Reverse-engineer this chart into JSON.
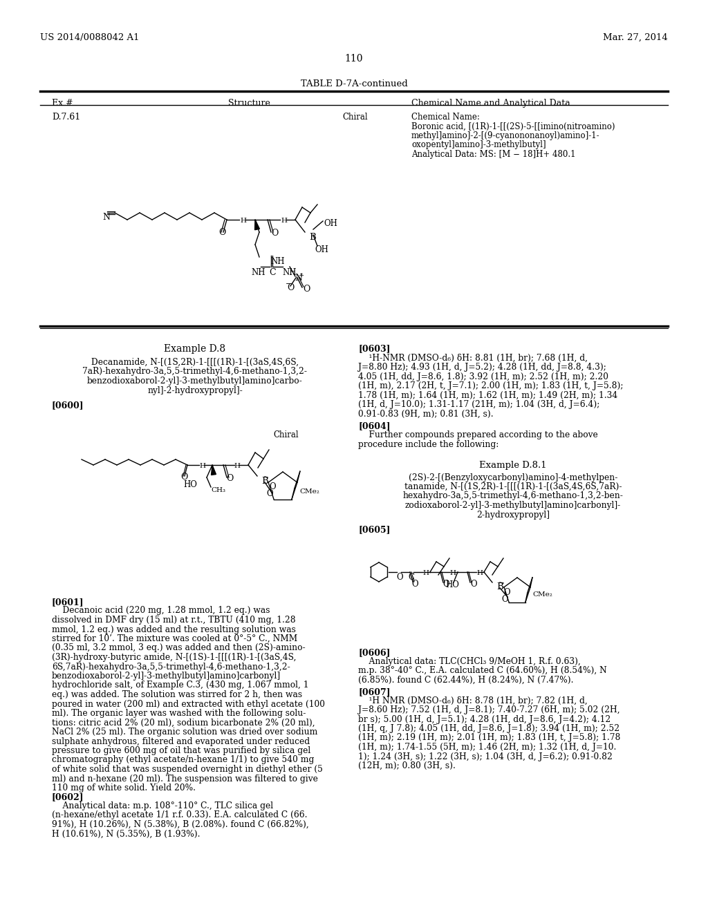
{
  "background_color": "#ffffff",
  "header_left": "US 2014/0088042 A1",
  "header_right": "Mar. 27, 2014",
  "page_number": "110",
  "table_title": "TABLE D-7A-continued",
  "col_headers": [
    "Ex #",
    "Structure",
    "Chemical Name and Analytical Data"
  ],
  "ex_id": "D.7.61",
  "chiral1": "Chiral",
  "chem_name_lines": [
    "Chemical Name:",
    "Boronic acid, [(1R)-1-[[(2S)-5-[[imino(nitroamino)",
    "methyl]amino]-2-[(9-cyanononanoyl)amino]-1-",
    "oxopentyl]amino]-3-methylbutyl]",
    "Analytical Data: MS: [M − 18]H+ 480.1"
  ],
  "ex_d8_title": "Example D.8",
  "ex_d8_lines": [
    "Decanamide, N-[(1S,2R)-1-[[[(1R)-1-[(3aS,4S,6S,",
    "7aR)-hexahydro-3a,5,5-trimethyl-4,6-methano-1,3,2-",
    "benzodioxaborol-2-yl]-3-methylbutyl]amino]carbo-",
    "nyl]-2-hydroxypropyl]-"
  ],
  "p0600": "[0600]",
  "chiral2": "Chiral",
  "p0601_head": "[0601]",
  "p0601_lines": [
    "    Decanoic acid (220 mg, 1.28 mmol, 1.2 eq.) was",
    "dissolved in DMF dry (15 ml) at r.t., TBTU (410 mg, 1.28",
    "mmol, 1.2 eq.) was added and the resulting solution was",
    "stirred for 10’. The mixture was cooled at 0°-5° C., NMM",
    "(0.35 ml, 3.2 mmol, 3 eq.) was added and then (2S)-amino-",
    "(3R)-hydroxy-butyric amide, N-[(1S)-1-[[[(1R)-1-[(3aS,4S,",
    "6S,7aR)-hexahydro-3a,5,5-trimethyl-4,6-methano-1,3,2-",
    "benzodioxaborol-2-yl]-3-methylbutyl]amino]carbonyl]",
    "hydrochloride salt, of Example C.3, (430 mg, 1.067 mmol, 1",
    "eq.) was added. The solution was stirred for 2 h, then was",
    "poured in water (200 ml) and extracted with ethyl acetate (100",
    "ml). The organic layer was washed with the following solu-",
    "tions: citric acid 2% (20 ml), sodium bicarbonate 2% (20 ml),",
    "NaCl 2% (25 ml). The organic solution was dried over sodium",
    "sulphate anhydrous, filtered and evaporated under reduced",
    "pressure to give 600 mg of oil that was purified by silica gel",
    "chromatography (ethyl acetate/n-hexane 1/1) to give 540 mg",
    "of white solid that was suspended overnight in diethyl ether (5",
    "ml) and n-hexane (20 ml). The suspension was filtered to give",
    "110 mg of white solid. Yield 20%."
  ],
  "p0602_head": "[0602]",
  "p0602_lines": [
    "    Analytical data: m.p. 108°-110° C., TLC silica gel",
    "(n-hexane/ethyl acetate 1/1 r.f. 0.33). E.A. calculated C (66.",
    "91%), H (10.26%), N (5.38%), B (2.08%). found C (66.82%),",
    "H (10.61%), N (5.35%), B (1.93%)."
  ],
  "p0603_head": "[0603]",
  "p0603_lines": [
    "    ¹H-NMR (DMSO-d₆) δH: 8.81 (1H, br); 7.68 (1H, d,",
    "J=8.80 Hz); 4.93 (1H, d, J=5.2); 4.28 (1H, dd, J=8.8, 4.3);",
    "4.05 (1H, dd, J=8.6, 1.8); 3.92 (1H, m); 2.52 (1H, m); 2.20",
    "(1H, m), 2.17 (2H, t, J=7.1); 2.00 (1H, m); 1.83 (1H, t, J=5.8);",
    "1.78 (1H, m); 1.64 (1H, m); 1.62 (1H, m); 1.49 (2H, m); 1.34",
    "(1H, d, J=10.0); 1.31-1.17 (21H, m); 1.04 (3H, d, J=6.4);",
    "0.91-0.83 (9H, m); 0.81 (3H, s)."
  ],
  "p0604_head": "[0604]",
  "p0604_lines": [
    "    Further compounds prepared according to the above",
    "procedure include the following:"
  ],
  "ex_d81_title": "Example D.8.1",
  "ex_d81_lines": [
    "(2S)-2-[(Benzyloxycarbonyl)amino]-4-methylpen-",
    "tanamide, N-[(1S,2R)-1-[[[(1R)-1-[(3aS,4S,6S,7aR)-",
    "hexahydro-3a,5,5-trimethyl-4,6-methano-1,3,2-ben-",
    "zodioxaborol-2-yl]-3-methylbutyl]amino]carbonyl]-",
    "2-hydroxypropyl]"
  ],
  "p0605": "[0605]",
  "p0606_head": "[0606]",
  "p0606_lines": [
    "    Analytical data: TLC(CHCl₃ 9/MeOH 1, R.f. 0.63),",
    "m.p. 38°-40° C., E.A. calculated C (64.60%), H (8.54%), N",
    "(6.85%). found C (62.44%), H (8.24%), N (7.47%)."
  ],
  "p0607_head": "[0607]",
  "p0607_lines": [
    "    ¹H NMR (DMSO-d₆) δH: 8.78 (1H, br); 7.82 (1H, d,",
    "J=8.60 Hz); 7.52 (1H, d, J=8.1); 7.40-7.27 (6H, m); 5.02 (2H,",
    "br s); 5.00 (1H, d, J=5.1); 4.28 (1H, dd, J=8.6, J=4.2); 4.12",
    "(1H, q, J 7.8); 4.05 (1H, dd, J=8.6, J=1.8); 3.94 (1H, m); 2.52",
    "(1H, m); 2.19 (1H, m); 2.01 (1H, m); 1.83 (1H, t, J=5.8); 1.78",
    "(1H, m); 1.74-1.55 (5H, m); 1.46 (2H, m); 1.32 (1H, d, J=10.",
    "1); 1.24 (3H, s); 1.22 (3H, s); 1.04 (3H, d, J=6.2); 0.91-0.82",
    "(12H, m); 0.80 (3H, s)."
  ]
}
